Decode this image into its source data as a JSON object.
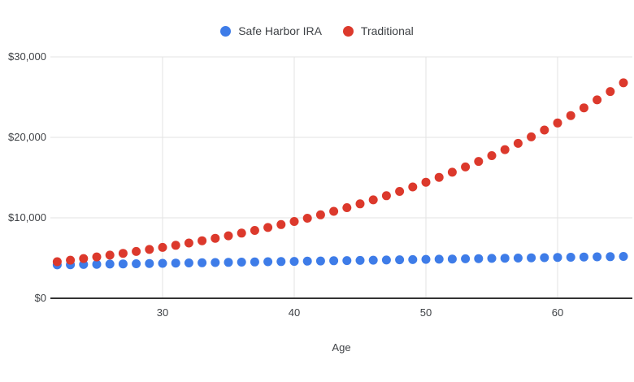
{
  "chart": {
    "background": "#ffffff",
    "gridline_color": "#e3e3e3",
    "baseline_color": "#333333"
  },
  "legend": {
    "items": [
      {
        "label": "Safe Harbor IRA",
        "color": "#3e7ce8"
      },
      {
        "label": "Traditional",
        "color": "#dc392c"
      }
    ]
  },
  "axes": {
    "x_title": "Age",
    "y_tick_labels": [
      "$0",
      "$10,000",
      "$20,000",
      "$30,000"
    ],
    "x_tick_labels": [
      "30",
      "40",
      "50",
      "60"
    ]
  },
  "chart_data": {
    "type": "scatter",
    "title": "",
    "xlabel": "Age",
    "ylabel": "",
    "xlim": [
      21.5,
      65.8
    ],
    "ylim": [
      0,
      30000
    ],
    "grid": true,
    "legend_position": "top",
    "x_ticks": [
      30,
      40,
      50,
      60
    ],
    "y_ticks": [
      0,
      10000,
      20000,
      30000
    ],
    "x": [
      22,
      23,
      24,
      25,
      26,
      27,
      28,
      29,
      30,
      31,
      32,
      33,
      34,
      35,
      36,
      37,
      38,
      39,
      40,
      41,
      42,
      43,
      44,
      45,
      46,
      47,
      48,
      49,
      50,
      51,
      52,
      53,
      54,
      55,
      56,
      57,
      58,
      59,
      60,
      61,
      62,
      63,
      64,
      65
    ],
    "series": [
      {
        "name": "Safe Harbor IRA",
        "color": "#3e7ce8",
        "values": [
          4150,
          4174,
          4199,
          4223,
          4248,
          4272,
          4296,
          4321,
          4345,
          4370,
          4394,
          4419,
          4443,
          4467,
          4492,
          4516,
          4541,
          4565,
          4590,
          4614,
          4638,
          4663,
          4687,
          4712,
          4736,
          4761,
          4785,
          4809,
          4834,
          4858,
          4883,
          4907,
          4932,
          4956,
          4980,
          5005,
          5029,
          5054,
          5078,
          5103,
          5127,
          5151,
          5176,
          5200
        ]
      },
      {
        "name": "Traditional",
        "color": "#dc392c",
        "values": [
          4545,
          4736,
          4936,
          5144,
          5360,
          5586,
          5821,
          6066,
          6322,
          6588,
          6865,
          7154,
          7456,
          7770,
          8097,
          8438,
          8793,
          9164,
          9549,
          9952,
          10371,
          10807,
          11262,
          11737,
          12231,
          12746,
          13283,
          13842,
          14425,
          15032,
          15665,
          16325,
          17013,
          17729,
          18476,
          19254,
          20064,
          20909,
          21790,
          22707,
          23664,
          24660,
          25699,
          26781
        ]
      }
    ]
  }
}
